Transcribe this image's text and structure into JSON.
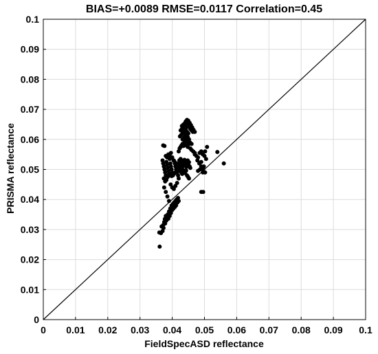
{
  "chart_data": {
    "type": "scatter",
    "title": "BIAS=+0.0089   RMSE=0.0117   Correlation=0.45",
    "xlabel": "FieldSpecASD reflectance",
    "ylabel": "PRISMA reflectance",
    "xlim": [
      0,
      0.1
    ],
    "ylim": [
      0,
      0.1
    ],
    "xticks": [
      "0",
      "0.01",
      "0.02",
      "0.03",
      "0.04",
      "0.05",
      "0.06",
      "0.07",
      "0.08",
      "0.09",
      "0.1"
    ],
    "yticks": [
      "0",
      "0.01",
      "0.02",
      "0.03",
      "0.04",
      "0.05",
      "0.06",
      "0.07",
      "0.08",
      "0.09",
      "0.1"
    ],
    "grid": true,
    "reference_line": "1:1",
    "series": [
      {
        "marker_color": "#000000",
        "x": [
          0.036,
          0.0361,
          0.0365,
          0.0367,
          0.037,
          0.0372,
          0.0373,
          0.0375,
          0.0377,
          0.0378,
          0.038,
          0.0382,
          0.0384,
          0.0386,
          0.0388,
          0.039,
          0.0392,
          0.0394,
          0.0396,
          0.0398,
          0.04,
          0.0402,
          0.0404,
          0.0406,
          0.0408,
          0.041,
          0.0412,
          0.0414,
          0.0416,
          0.0418,
          0.042,
          0.037,
          0.0372,
          0.0374,
          0.0376,
          0.0378,
          0.038,
          0.0382,
          0.0384,
          0.0386,
          0.0388,
          0.039,
          0.0392,
          0.0394,
          0.0396,
          0.0398,
          0.04,
          0.0402,
          0.0405,
          0.0408,
          0.041,
          0.0412,
          0.0415,
          0.0418,
          0.042,
          0.0372,
          0.0376,
          0.038,
          0.0384,
          0.0388,
          0.0392,
          0.0396,
          0.04,
          0.0404,
          0.0408,
          0.0412,
          0.0416,
          0.042,
          0.0424,
          0.0374,
          0.0378,
          0.0382,
          0.0386,
          0.039,
          0.0394,
          0.0398,
          0.0402,
          0.0406,
          0.041,
          0.0414,
          0.0418,
          0.0375,
          0.038,
          0.0385,
          0.039,
          0.0395,
          0.04,
          0.0405,
          0.041,
          0.0415,
          0.042,
          0.0422,
          0.0424,
          0.0426,
          0.0428,
          0.043,
          0.0432,
          0.0434,
          0.0436,
          0.0438,
          0.044,
          0.0442,
          0.0444,
          0.0446,
          0.0448,
          0.045,
          0.0452,
          0.0454,
          0.0456,
          0.0422,
          0.0425,
          0.0428,
          0.0431,
          0.0434,
          0.0437,
          0.044,
          0.0443,
          0.0446,
          0.0449,
          0.0452,
          0.042,
          0.0423,
          0.0426,
          0.0429,
          0.0432,
          0.0435,
          0.0438,
          0.0441,
          0.0444,
          0.0447,
          0.045,
          0.0424,
          0.0428,
          0.0432,
          0.0436,
          0.044,
          0.0444,
          0.0448,
          0.0452,
          0.0426,
          0.043,
          0.0434,
          0.0438,
          0.0442,
          0.0446,
          0.045,
          0.043,
          0.0435,
          0.044,
          0.0445,
          0.045,
          0.0432,
          0.0436,
          0.044,
          0.0444,
          0.0448,
          0.0434,
          0.0438,
          0.0442,
          0.0446,
          0.045,
          0.0455,
          0.046,
          0.044,
          0.0444,
          0.0448,
          0.0452,
          0.0456,
          0.046,
          0.0464,
          0.0442,
          0.0446,
          0.045,
          0.0454,
          0.0458,
          0.0462,
          0.0466,
          0.047,
          0.0444,
          0.0448,
          0.0452,
          0.0456,
          0.046,
          0.0465,
          0.047,
          0.047,
          0.0475,
          0.048,
          0.0485,
          0.049,
          0.0495,
          0.05,
          0.0505,
          0.0478,
          0.0484,
          0.049,
          0.0496,
          0.0502,
          0.048,
          0.0486,
          0.0492,
          0.0498,
          0.049,
          0.0496,
          0.0502,
          0.0508,
          0.054,
          0.056,
          0.049,
          0.0495
        ],
        "y": [
          0.029,
          0.0243,
          0.0288,
          0.031,
          0.0295,
          0.0315,
          0.0305,
          0.0325,
          0.0335,
          0.032,
          0.0345,
          0.033,
          0.034,
          0.035,
          0.0336,
          0.036,
          0.0345,
          0.037,
          0.0355,
          0.038,
          0.0365,
          0.0385,
          0.037,
          0.039,
          0.0375,
          0.0395,
          0.038,
          0.04,
          0.039,
          0.0405,
          0.0395,
          0.053,
          0.052,
          0.051,
          0.05,
          0.049,
          0.048,
          0.0525,
          0.0515,
          0.0505,
          0.0495,
          0.0485,
          0.0535,
          0.052,
          0.051,
          0.05,
          0.049,
          0.048,
          0.053,
          0.052,
          0.051,
          0.05,
          0.049,
          0.048,
          0.047,
          0.058,
          0.0578,
          0.0545,
          0.054,
          0.055,
          0.0545,
          0.0555,
          0.054,
          0.053,
          0.0525,
          0.052,
          0.0515,
          0.051,
          0.0505,
          0.047,
          0.046,
          0.0465,
          0.0475,
          0.048,
          0.0485,
          0.0478,
          0.0482,
          0.0486,
          0.049,
          0.0495,
          0.05,
          0.044,
          0.0425,
          0.041,
          0.0395,
          0.045,
          0.044,
          0.0435,
          0.0445,
          0.0455,
          0.052,
          0.053,
          0.0525,
          0.0535,
          0.0515,
          0.0528,
          0.051,
          0.0522,
          0.0518,
          0.0532,
          0.0512,
          0.0526,
          0.0508,
          0.052,
          0.053,
          0.0516,
          0.0524,
          0.051,
          0.0505,
          0.05,
          0.0495,
          0.049,
          0.0485,
          0.0498,
          0.0492,
          0.0488,
          0.0496,
          0.048,
          0.0475,
          0.047,
          0.056,
          0.057,
          0.0575,
          0.058,
          0.0585,
          0.0578,
          0.059,
          0.0595,
          0.06,
          0.0605,
          0.0595,
          0.061,
          0.0615,
          0.062,
          0.0625,
          0.0618,
          0.0612,
          0.0608,
          0.06,
          0.063,
          0.0635,
          0.0628,
          0.064,
          0.0632,
          0.0625,
          0.062,
          0.0645,
          0.065,
          0.0655,
          0.066,
          0.065,
          0.06,
          0.0605,
          0.061,
          0.0598,
          0.0592,
          0.062,
          0.0625,
          0.0615,
          0.0608,
          0.0602,
          0.059,
          0.0585,
          0.0645,
          0.064,
          0.065,
          0.0645,
          0.0635,
          0.063,
          0.0625,
          0.066,
          0.0665,
          0.0662,
          0.0655,
          0.0648,
          0.064,
          0.0632,
          0.0625,
          0.058,
          0.0575,
          0.0585,
          0.057,
          0.0565,
          0.056,
          0.0555,
          0.055,
          0.0545,
          0.054,
          0.0555,
          0.056,
          0.055,
          0.0545,
          0.0535,
          0.053,
          0.052,
          0.051,
          0.05,
          0.049,
          0.0495,
          0.05,
          0.0505,
          0.051,
          0.0425,
          0.0425,
          0.056,
          0.0575,
          0.0558,
          0.052,
          0.0525,
          0.049
        ]
      }
    ]
  }
}
